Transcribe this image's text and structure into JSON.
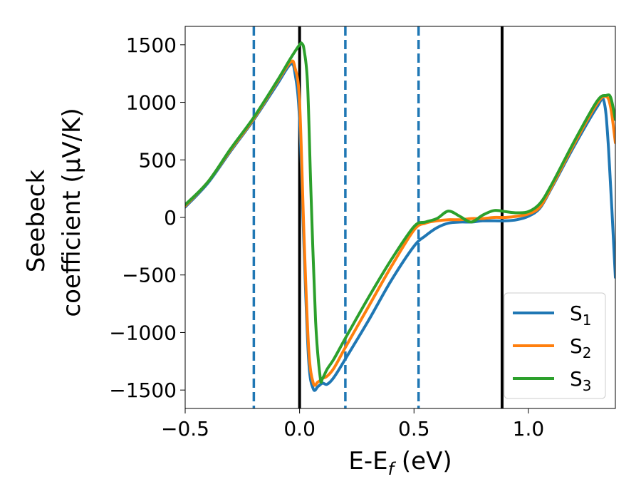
{
  "chart_data": {
    "type": "line",
    "title": "",
    "xlabel": "E-E",
    "xlabel_sub": "f",
    "xlabel_unit": " (eV)",
    "ylabel_line1": "Seebeck",
    "ylabel_line2": "coefficient  (μV/K)",
    "xlim": [
      -0.5,
      1.38
    ],
    "ylim": [
      -1660,
      1660
    ],
    "xticks": [
      -0.5,
      0.0,
      0.5,
      1.0
    ],
    "xtick_labels": [
      "−0.5",
      "0.0",
      "0.5",
      "1.0"
    ],
    "yticks": [
      1500,
      1000,
      500,
      0,
      -500,
      -1000,
      -1500
    ],
    "ytick_labels": [
      "1500",
      "1000",
      "500",
      "0",
      "−500",
      "−1000",
      "−1500"
    ],
    "grid": false,
    "legend_position": "lower-right",
    "vertical_lines": [
      {
        "x": -0.2,
        "style": "dashed",
        "color": "#1f77b4"
      },
      {
        "x": 0.0,
        "style": "solid",
        "color": "#000000"
      },
      {
        "x": 0.2,
        "style": "dashed",
        "color": "#1f77b4"
      },
      {
        "x": 0.52,
        "style": "dashed",
        "color": "#1f77b4"
      },
      {
        "x": 0.885,
        "style": "solid",
        "color": "#000000"
      }
    ],
    "series": [
      {
        "name": "S",
        "name_sub": "1",
        "color": "#1f77b4",
        "x": [
          -0.5,
          -0.4,
          -0.3,
          -0.2,
          -0.1,
          -0.04,
          -0.02,
          0.0,
          0.02,
          0.04,
          0.06,
          0.08,
          0.1,
          0.12,
          0.15,
          0.2,
          0.3,
          0.4,
          0.5,
          0.55,
          0.6,
          0.65,
          0.7,
          0.75,
          0.8,
          0.85,
          0.9,
          0.95,
          1.0,
          1.05,
          1.1,
          1.2,
          1.3,
          1.33,
          1.35,
          1.38
        ],
        "y": [
          90,
          300,
          580,
          850,
          1150,
          1330,
          1250,
          850,
          -300,
          -1250,
          -1490,
          -1470,
          -1440,
          -1450,
          -1390,
          -1230,
          -900,
          -550,
          -250,
          -160,
          -90,
          -50,
          -40,
          -40,
          -30,
          -30,
          -30,
          -20,
          10,
          80,
          250,
          620,
          960,
          1010,
          600,
          -520
        ]
      },
      {
        "name": "S",
        "name_sub": "2",
        "color": "#ff7f0e",
        "x": [
          -0.5,
          -0.4,
          -0.3,
          -0.2,
          -0.1,
          -0.04,
          -0.02,
          0.0,
          0.02,
          0.04,
          0.06,
          0.08,
          0.1,
          0.12,
          0.15,
          0.2,
          0.3,
          0.4,
          0.5,
          0.55,
          0.6,
          0.65,
          0.7,
          0.75,
          0.8,
          0.85,
          0.9,
          0.95,
          1.0,
          1.05,
          1.1,
          1.2,
          1.3,
          1.34,
          1.36,
          1.38
        ],
        "y": [
          100,
          310,
          590,
          860,
          1170,
          1350,
          1300,
          1000,
          -200,
          -1150,
          -1440,
          -1430,
          -1400,
          -1380,
          -1310,
          -1130,
          -780,
          -430,
          -110,
          -50,
          -30,
          -20,
          -20,
          -10,
          -10,
          0,
          0,
          10,
          30,
          90,
          260,
          640,
          990,
          1050,
          950,
          650
        ]
      },
      {
        "name": "S",
        "name_sub": "3",
        "color": "#2ca02c",
        "x": [
          -0.5,
          -0.4,
          -0.3,
          -0.2,
          -0.1,
          -0.04,
          0.0,
          0.01,
          0.02,
          0.035,
          0.05,
          0.07,
          0.09,
          0.1,
          0.12,
          0.15,
          0.2,
          0.3,
          0.4,
          0.5,
          0.55,
          0.6,
          0.65,
          0.7,
          0.75,
          0.8,
          0.85,
          0.9,
          0.95,
          1.0,
          1.05,
          1.1,
          1.2,
          1.3,
          1.34,
          1.36,
          1.38
        ],
        "y": [
          110,
          310,
          600,
          870,
          1180,
          1380,
          1500,
          1510,
          1450,
          1150,
          200,
          -900,
          -1390,
          -1400,
          -1320,
          -1230,
          -1050,
          -700,
          -370,
          -80,
          -40,
          -10,
          55,
          10,
          -40,
          20,
          60,
          50,
          40,
          50,
          120,
          280,
          660,
          1010,
          1060,
          1040,
          850
        ]
      }
    ]
  }
}
